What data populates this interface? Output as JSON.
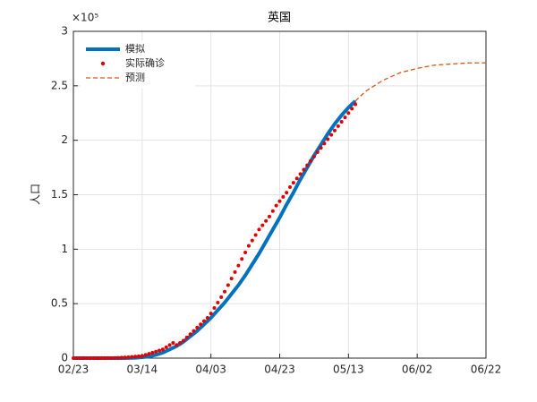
{
  "chart_data": {
    "type": "line",
    "title": "英国",
    "y_label": "人口",
    "y_scale_label": "×10⁵",
    "xlim": [
      0,
      120
    ],
    "xticks": [
      {
        "value": 0,
        "label": "02/23"
      },
      {
        "value": 20,
        "label": "03/14"
      },
      {
        "value": 40,
        "label": "04/03"
      },
      {
        "value": 60,
        "label": "04/23"
      },
      {
        "value": 80,
        "label": "05/13"
      },
      {
        "value": 100,
        "label": "06/02"
      },
      {
        "value": 120,
        "label": "06/22"
      }
    ],
    "ylim": [
      0,
      3
    ],
    "yticks": [
      0,
      0.5,
      1,
      1.5,
      2,
      2.5,
      3
    ],
    "grid": true,
    "legend": "upper-left",
    "series": [
      {
        "name": "模拟",
        "color": "#0072bd",
        "line_style": "solid",
        "x": [
          0,
          2,
          4,
          6,
          8,
          10,
          12,
          14,
          16,
          18,
          20,
          22,
          24,
          26,
          28,
          30,
          32,
          34,
          36,
          38,
          40,
          42,
          44,
          46,
          48,
          50,
          52,
          54,
          56,
          58,
          60,
          62,
          64,
          66,
          68,
          70,
          72,
          74,
          76,
          78,
          80,
          82
        ],
        "values": [
          0,
          0,
          0,
          0,
          0,
          0,
          0,
          0,
          0.001,
          0.003,
          0.008,
          0.015,
          0.03,
          0.05,
          0.08,
          0.11,
          0.15,
          0.2,
          0.25,
          0.31,
          0.37,
          0.44,
          0.51,
          0.59,
          0.67,
          0.76,
          0.86,
          0.96,
          1.07,
          1.18,
          1.29,
          1.41,
          1.52,
          1.64,
          1.75,
          1.86,
          1.96,
          2.06,
          2.15,
          2.23,
          2.3,
          2.36
        ]
      },
      {
        "name": "实际确诊",
        "color": "#e00000",
        "line_style": "dots",
        "x": [
          0,
          1,
          2,
          3,
          4,
          5,
          6,
          7,
          8,
          9,
          10,
          11,
          12,
          13,
          14,
          15,
          16,
          17,
          18,
          19,
          20,
          21,
          22,
          23,
          24,
          25,
          26,
          27,
          28,
          29,
          30,
          31,
          32,
          33,
          34,
          35,
          36,
          37,
          38,
          39,
          40,
          41,
          42,
          43,
          44,
          45,
          46,
          47,
          48,
          49,
          50,
          51,
          52,
          53,
          54,
          55,
          56,
          57,
          58,
          59,
          60,
          61,
          62,
          63,
          64,
          65,
          66,
          67,
          68,
          69,
          70,
          71,
          72,
          73,
          74,
          75,
          76,
          77,
          78,
          79,
          80,
          81,
          82
        ],
        "values": [
          0,
          0,
          0,
          0,
          0,
          0,
          0,
          0,
          0,
          0,
          0.001,
          0.001,
          0.002,
          0.003,
          0.005,
          0.006,
          0.008,
          0.011,
          0.014,
          0.017,
          0.02,
          0.03,
          0.04,
          0.05,
          0.06,
          0.07,
          0.08,
          0.1,
          0.12,
          0.14,
          0.12,
          0.14,
          0.16,
          0.19,
          0.22,
          0.25,
          0.28,
          0.31,
          0.34,
          0.37,
          0.41,
          0.46,
          0.51,
          0.56,
          0.61,
          0.67,
          0.73,
          0.79,
          0.85,
          0.91,
          0.97,
          1.03,
          1.08,
          1.13,
          1.18,
          1.22,
          1.26,
          1.3,
          1.35,
          1.4,
          1.44,
          1.48,
          1.52,
          1.57,
          1.61,
          1.65,
          1.69,
          1.73,
          1.77,
          1.81,
          1.85,
          1.89,
          1.93,
          1.97,
          2.01,
          2.05,
          2.09,
          2.13,
          2.17,
          2.21,
          2.25,
          2.29,
          2.33
        ]
      },
      {
        "name": "预测",
        "color": "#d95319",
        "line_style": "dashed",
        "x": [
          82,
          85,
          90,
          95,
          100,
          105,
          110,
          115,
          120
        ],
        "values": [
          2.36,
          2.45,
          2.55,
          2.62,
          2.66,
          2.69,
          2.7,
          2.71,
          2.71
        ]
      }
    ]
  }
}
